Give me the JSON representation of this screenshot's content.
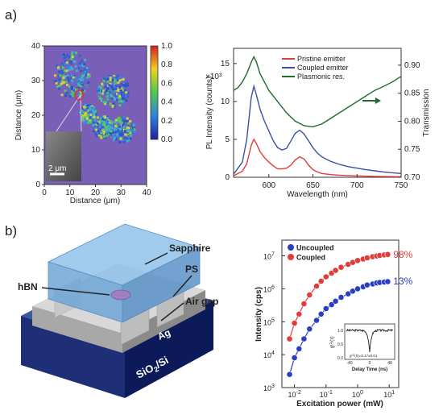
{
  "panel_labels": {
    "a": "a)",
    "b": "b)"
  },
  "map": {
    "xlabel": "Distance (μm)",
    "ylabel": "Distance (μm)",
    "xticks": [
      "0",
      "10",
      "20",
      "30",
      "40"
    ],
    "yticks": [
      "0",
      "10",
      "20",
      "30",
      "40"
    ],
    "colorbar_ticks": [
      "1.0",
      "0.8",
      "0.6",
      "0.4",
      "0.2",
      "0.0"
    ],
    "scalebar": "2 μm"
  },
  "diagram": {
    "labels": {
      "sapphire": "Sapphire",
      "ps": "PS",
      "hbn": "hBN",
      "airgap": "Air gap",
      "ag": "Ag",
      "sio2": "SiO",
      "sio2_sub": "2",
      "sio2_tail": "/Si"
    }
  },
  "inset": {
    "ylabel": "g",
    "ysup": "(2)",
    "ysuf": "(τ)",
    "xlabel": "Delay Time (ns)",
    "xticks": [
      "-40",
      "0",
      "40"
    ],
    "yticks": [
      "1.0",
      "0.5",
      "0.0"
    ],
    "annotation": "g⁽²⁾(0)=0.17±0.01"
  },
  "chart_data": [
    {
      "type": "line",
      "xlabel": "Wavelength (nm)",
      "ylabel": "PL Intensity (counts)",
      "y2label": "Transmission",
      "y_multiplier": "×10³",
      "xlim": [
        560,
        750
      ],
      "ylim": [
        0,
        17
      ],
      "y2lim": [
        0.7,
        0.93
      ],
      "xticks": [
        600,
        650,
        700,
        750
      ],
      "yticks": [
        0,
        5,
        10,
        15
      ],
      "y2ticks": [
        0.7,
        0.75,
        0.8,
        0.85,
        0.9
      ],
      "legend_position": "top-right",
      "series": [
        {
          "name": "Pristine emitter",
          "color": "#e03c3c",
          "axis": "left",
          "x": [
            560,
            570,
            575,
            580,
            583,
            586,
            590,
            595,
            600,
            605,
            610,
            615,
            620,
            625,
            630,
            635,
            640,
            645,
            650,
            655,
            660,
            670,
            680,
            690,
            700,
            710,
            720,
            730,
            740,
            750
          ],
          "y": [
            0.2,
            0.8,
            1.8,
            4.2,
            5.0,
            4.4,
            3.4,
            2.6,
            2.0,
            1.5,
            1.1,
            1.1,
            1.2,
            1.6,
            2.3,
            2.7,
            2.4,
            1.6,
            1.0,
            0.7,
            0.5,
            0.35,
            0.28,
            0.22,
            0.18,
            0.15,
            0.12,
            0.1,
            0.08,
            0.06
          ]
        },
        {
          "name": "Coupled emitter",
          "color": "#3a4fa8",
          "axis": "left",
          "x": [
            560,
            570,
            575,
            580,
            583,
            586,
            590,
            595,
            600,
            605,
            610,
            615,
            620,
            625,
            630,
            635,
            640,
            645,
            650,
            655,
            660,
            670,
            680,
            690,
            700,
            710,
            720,
            730,
            740,
            750
          ],
          "y": [
            0.4,
            2.0,
            5.0,
            10.5,
            12.0,
            10.8,
            9.0,
            7.4,
            6.1,
            4.8,
            3.9,
            3.6,
            3.8,
            4.8,
            5.8,
            6.2,
            5.7,
            4.8,
            3.9,
            3.2,
            2.7,
            2.1,
            1.7,
            1.4,
            1.2,
            1.0,
            0.85,
            0.7,
            0.6,
            0.5
          ]
        },
        {
          "name": "Plasmonic res.",
          "color": "#1f6b2e",
          "axis": "right",
          "x": [
            560,
            565,
            570,
            575,
            580,
            583,
            586,
            590,
            595,
            600,
            610,
            620,
            630,
            640,
            650,
            660,
            670,
            680,
            690,
            700,
            710,
            720,
            730,
            740,
            750
          ],
          "y": [
            0.855,
            0.86,
            0.87,
            0.885,
            0.905,
            0.915,
            0.905,
            0.885,
            0.87,
            0.855,
            0.835,
            0.815,
            0.8,
            0.792,
            0.79,
            0.795,
            0.805,
            0.815,
            0.825,
            0.835,
            0.845,
            0.855,
            0.862,
            0.87,
            0.88
          ]
        }
      ]
    },
    {
      "type": "scatter",
      "xlabel": "Excitation power (mW)",
      "ylabel": "Intensity (cps)",
      "x_scale": "log",
      "y_scale": "log",
      "xlim": [
        0.004,
        20
      ],
      "ylim": [
        1000,
        30000000
      ],
      "xtick_labels": [
        {
          "b": "10",
          "e": "-2",
          "v": 0.01
        },
        {
          "b": "10",
          "e": "-1",
          "v": 0.1
        },
        {
          "b": "10",
          "e": "0",
          "v": 1
        },
        {
          "b": "10",
          "e": "1",
          "v": 10
        }
      ],
      "ytick_labels": [
        {
          "b": "10",
          "e": "3",
          "v": 1000
        },
        {
          "b": "10",
          "e": "4",
          "v": 10000
        },
        {
          "b": "10",
          "e": "5",
          "v": 100000
        },
        {
          "b": "10",
          "e": "6",
          "v": 1000000
        },
        {
          "b": "10",
          "e": "7",
          "v": 10000000
        }
      ],
      "legend_position": "top-left",
      "annotations": [
        {
          "text": "98%",
          "color": "#e03c3c",
          "x": 12,
          "y": 11000000
        },
        {
          "text": "13%",
          "color": "#2a3fc0",
          "x": 12,
          "y": 1700000
        }
      ],
      "series": [
        {
          "name": "Uncoupled",
          "color": "#2a3fc0",
          "x": [
            0.007,
            0.01,
            0.014,
            0.02,
            0.03,
            0.05,
            0.07,
            0.1,
            0.15,
            0.2,
            0.3,
            0.5,
            0.7,
            1,
            1.5,
            2,
            3,
            4,
            5,
            7,
            9
          ],
          "y": [
            2500,
            8000,
            15000,
            30000,
            60000,
            110000,
            170000,
            250000,
            330000,
            420000,
            550000,
            700000,
            850000,
            1000000,
            1150000,
            1300000,
            1400000,
            1500000,
            1550000,
            1600000,
            1650000
          ]
        },
        {
          "name": "Coupled",
          "color": "#e03c3c",
          "x": [
            0.007,
            0.01,
            0.014,
            0.02,
            0.03,
            0.05,
            0.07,
            0.1,
            0.15,
            0.2,
            0.3,
            0.5,
            0.7,
            1,
            1.5,
            2,
            3,
            4,
            5,
            7,
            9
          ],
          "y": [
            30000,
            90000,
            170000,
            350000,
            650000,
            1200000,
            1700000,
            2300000,
            3000000,
            3600000,
            4500000,
            5500000,
            6300000,
            7200000,
            8000000,
            8700000,
            9400000,
            9900000,
            10300000,
            10700000,
            11000000
          ]
        }
      ]
    }
  ]
}
